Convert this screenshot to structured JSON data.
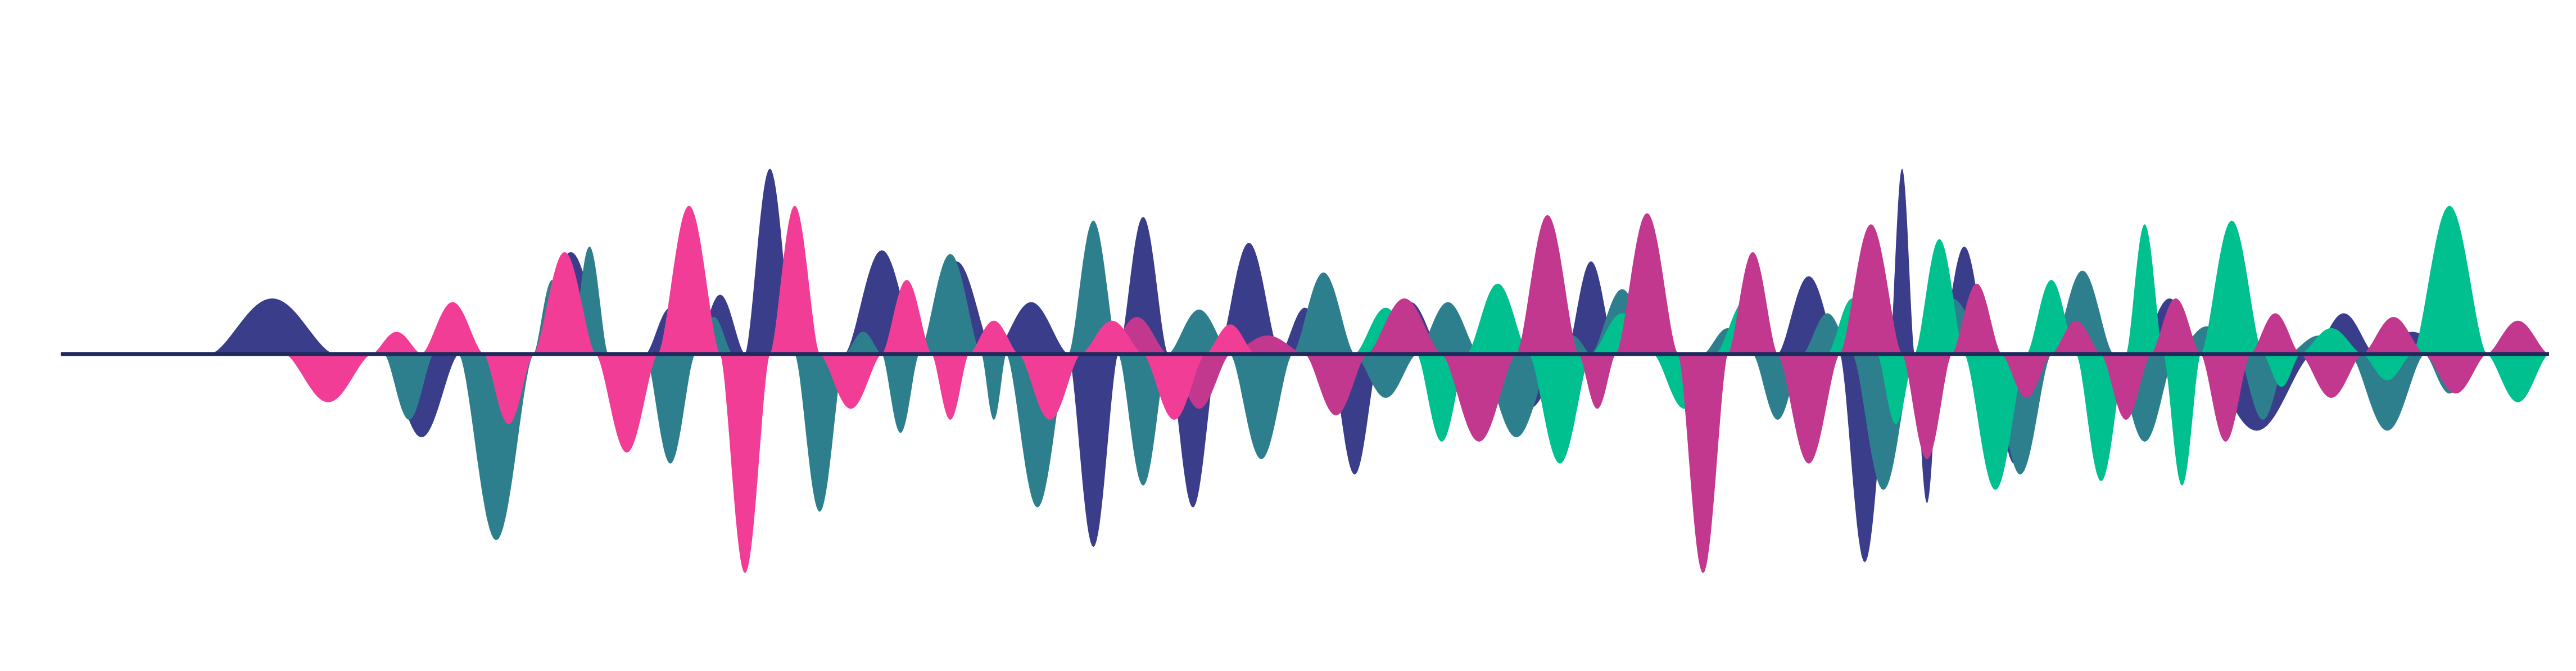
{
  "artwork": {
    "kind": "abstract-sound-wave",
    "background": "#ffffff",
    "baseline_color": "#1f2a5c",
    "layers": [
      {
        "name": "navy",
        "color": "#3a3d8a",
        "lobes": [
          [
            0.06,
            0.11,
            0.3
          ],
          [
            0.13,
            0.16,
            -0.38
          ],
          [
            0.19,
            0.22,
            0.55
          ],
          [
            0.235,
            0.255,
            0.25
          ],
          [
            0.255,
            0.275,
            0.32
          ],
          [
            0.275,
            0.295,
            1.0
          ],
          [
            0.295,
            0.315,
            -0.6
          ],
          [
            0.315,
            0.345,
            0.56
          ],
          [
            0.345,
            0.375,
            0.5
          ],
          [
            0.375,
            0.405,
            0.28
          ],
          [
            0.405,
            0.425,
            -0.88
          ],
          [
            0.425,
            0.445,
            0.74
          ],
          [
            0.445,
            0.465,
            -0.7
          ],
          [
            0.465,
            0.49,
            0.6
          ],
          [
            0.49,
            0.51,
            0.25
          ],
          [
            0.51,
            0.53,
            -0.55
          ],
          [
            0.53,
            0.555,
            0.28
          ],
          [
            0.555,
            0.575,
            -0.2
          ],
          [
            0.575,
            0.605,
            -0.25
          ],
          [
            0.605,
            0.625,
            0.5
          ],
          [
            0.625,
            0.64,
            0.35
          ],
          [
            0.69,
            0.715,
            0.42
          ],
          [
            0.715,
            0.735,
            -0.95
          ],
          [
            0.735,
            0.745,
            1.0
          ],
          [
            0.745,
            0.755,
            -0.68
          ],
          [
            0.755,
            0.775,
            0.58
          ],
          [
            0.775,
            0.795,
            -0.5
          ],
          [
            0.795,
            0.815,
            0.1
          ],
          [
            0.815,
            0.835,
            -0.1
          ],
          [
            0.835,
            0.86,
            0.3
          ],
          [
            0.86,
            0.905,
            -0.35
          ],
          [
            0.905,
            0.93,
            0.22
          ],
          [
            0.93,
            0.96,
            0.12
          ]
        ]
      },
      {
        "name": "teal-blue",
        "color": "#2e7f8e",
        "lobes": [
          [
            0.13,
            0.15,
            -0.3
          ],
          [
            0.15,
            0.16,
            0.08
          ],
          [
            0.16,
            0.19,
            -0.85
          ],
          [
            0.19,
            0.205,
            0.4
          ],
          [
            0.205,
            0.22,
            0.58
          ],
          [
            0.22,
            0.235,
            -0.18
          ],
          [
            0.235,
            0.255,
            -0.5
          ],
          [
            0.255,
            0.27,
            0.2
          ],
          [
            0.27,
            0.285,
            -0.45
          ],
          [
            0.285,
            0.295,
            0.28
          ],
          [
            0.295,
            0.315,
            -0.72
          ],
          [
            0.315,
            0.33,
            0.12
          ],
          [
            0.33,
            0.345,
            -0.36
          ],
          [
            0.345,
            0.37,
            0.54
          ],
          [
            0.37,
            0.38,
            -0.3
          ],
          [
            0.38,
            0.405,
            -0.7
          ],
          [
            0.405,
            0.425,
            0.72
          ],
          [
            0.425,
            0.445,
            -0.6
          ],
          [
            0.445,
            0.47,
            0.24
          ],
          [
            0.47,
            0.495,
            -0.48
          ],
          [
            0.495,
            0.52,
            0.44
          ],
          [
            0.52,
            0.545,
            -0.2
          ],
          [
            0.545,
            0.57,
            0.28
          ],
          [
            0.57,
            0.6,
            -0.38
          ],
          [
            0.6,
            0.615,
            0.1
          ],
          [
            0.615,
            0.64,
            0.35
          ],
          [
            0.64,
            0.66,
            -0.1
          ],
          [
            0.66,
            0.68,
            0.14
          ],
          [
            0.68,
            0.7,
            -0.3
          ],
          [
            0.7,
            0.72,
            0.22
          ],
          [
            0.72,
            0.745,
            -0.62
          ],
          [
            0.745,
            0.775,
            0.3
          ],
          [
            0.775,
            0.8,
            -0.55
          ],
          [
            0.8,
            0.825,
            0.45
          ],
          [
            0.825,
            0.85,
            -0.4
          ],
          [
            0.85,
            0.875,
            0.15
          ],
          [
            0.875,
            0.895,
            -0.3
          ],
          [
            0.895,
            0.92,
            0.1
          ],
          [
            0.92,
            0.95,
            -0.35
          ],
          [
            0.95,
            0.97,
            -0.18
          ]
        ]
      },
      {
        "name": "emerald",
        "color": "#00c08f",
        "lobes": [
          [
            0.52,
            0.545,
            0.25
          ],
          [
            0.545,
            0.565,
            -0.4
          ],
          [
            0.565,
            0.59,
            0.38
          ],
          [
            0.59,
            0.615,
            -0.5
          ],
          [
            0.615,
            0.64,
            0.22
          ],
          [
            0.64,
            0.665,
            -0.25
          ],
          [
            0.665,
            0.69,
            0.3
          ],
          [
            0.69,
            0.71,
            -0.2
          ],
          [
            0.71,
            0.73,
            0.3
          ],
          [
            0.73,
            0.745,
            -0.32
          ],
          [
            0.745,
            0.765,
            0.62
          ],
          [
            0.765,
            0.79,
            -0.62
          ],
          [
            0.79,
            0.81,
            0.4
          ],
          [
            0.81,
            0.83,
            -0.58
          ],
          [
            0.83,
            0.845,
            0.7
          ],
          [
            0.845,
            0.86,
            -0.6
          ],
          [
            0.86,
            0.885,
            0.72
          ],
          [
            0.885,
            0.9,
            -0.15
          ],
          [
            0.9,
            0.925,
            0.14
          ],
          [
            0.925,
            0.945,
            -0.12
          ],
          [
            0.945,
            0.975,
            0.8
          ],
          [
            0.975,
            1.01,
            -0.22
          ],
          [
            1.01,
            1.045,
            -0.14
          ]
        ]
      },
      {
        "name": "magenta",
        "color": "#c2388e",
        "lobes": [
          [
            0.42,
            0.445,
            0.2
          ],
          [
            0.445,
            0.47,
            -0.25
          ],
          [
            0.47,
            0.5,
            0.1
          ],
          [
            0.5,
            0.525,
            -0.28
          ],
          [
            0.525,
            0.555,
            0.3
          ],
          [
            0.555,
            0.585,
            -0.4
          ],
          [
            0.585,
            0.61,
            0.75
          ],
          [
            0.61,
            0.625,
            -0.25
          ],
          [
            0.625,
            0.65,
            0.76
          ],
          [
            0.65,
            0.67,
            -1.0
          ],
          [
            0.67,
            0.69,
            0.55
          ],
          [
            0.69,
            0.715,
            -0.5
          ],
          [
            0.715,
            0.74,
            0.7
          ],
          [
            0.74,
            0.76,
            -0.48
          ],
          [
            0.76,
            0.78,
            0.38
          ],
          [
            0.78,
            0.8,
            -0.2
          ],
          [
            0.8,
            0.82,
            0.18
          ],
          [
            0.82,
            0.84,
            -0.3
          ],
          [
            0.84,
            0.86,
            0.3
          ],
          [
            0.86,
            0.88,
            -0.4
          ],
          [
            0.88,
            0.9,
            0.22
          ],
          [
            0.9,
            0.925,
            -0.2
          ],
          [
            0.925,
            0.95,
            0.2
          ],
          [
            0.95,
            0.975,
            -0.18
          ],
          [
            0.975,
            1.0,
            0.18
          ],
          [
            1.0,
            1.04,
            -0.12
          ],
          [
            1.04,
            1.07,
            -0.08
          ],
          [
            1.07,
            1.1,
            0.05
          ]
        ]
      },
      {
        "name": "pink",
        "color": "#f23d96",
        "lobes": [
          [
            0.09,
            0.125,
            -0.22
          ],
          [
            0.125,
            0.145,
            0.12
          ],
          [
            0.145,
            0.17,
            0.28
          ],
          [
            0.17,
            0.19,
            -0.32
          ],
          [
            0.19,
            0.215,
            0.55
          ],
          [
            0.215,
            0.24,
            -0.45
          ],
          [
            0.24,
            0.265,
            0.8
          ],
          [
            0.265,
            0.285,
            -1.0
          ],
          [
            0.285,
            0.305,
            0.8
          ],
          [
            0.305,
            0.33,
            -0.25
          ],
          [
            0.33,
            0.35,
            0.4
          ],
          [
            0.35,
            0.365,
            -0.3
          ],
          [
            0.365,
            0.385,
            0.18
          ],
          [
            0.385,
            0.41,
            -0.3
          ],
          [
            0.41,
            0.435,
            0.18
          ],
          [
            0.435,
            0.46,
            -0.3
          ],
          [
            0.46,
            0.48,
            0.16
          ]
        ]
      }
    ]
  }
}
